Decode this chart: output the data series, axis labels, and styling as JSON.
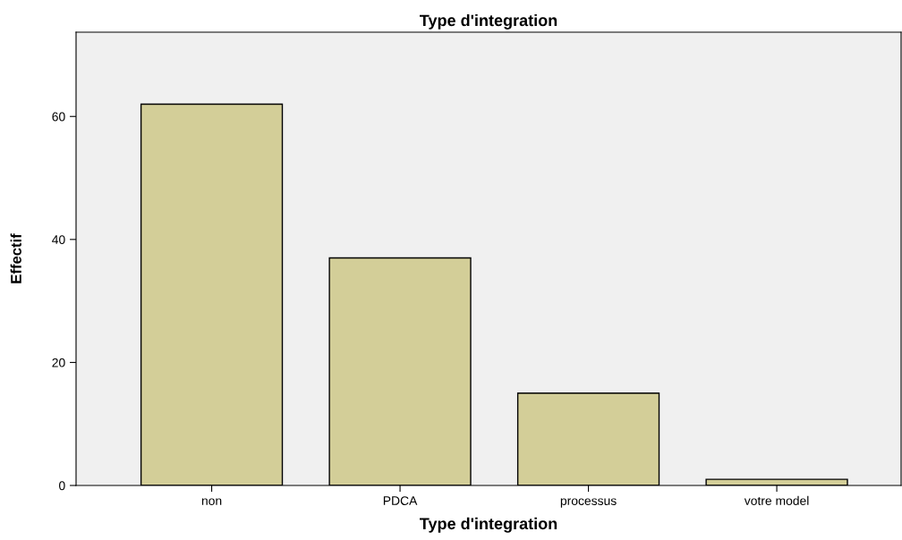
{
  "chart_data": {
    "type": "bar",
    "title": "Type d'integration",
    "xlabel": "Type d'integration",
    "ylabel": "Effectif",
    "categories": [
      "non",
      "PDCA",
      "processus",
      "votre model"
    ],
    "values": [
      62,
      37,
      15,
      1
    ],
    "color": "#d3ce98",
    "ylim": [
      0,
      73.7
    ],
    "yticks": [
      0,
      20,
      40,
      60
    ],
    "grid": false
  }
}
